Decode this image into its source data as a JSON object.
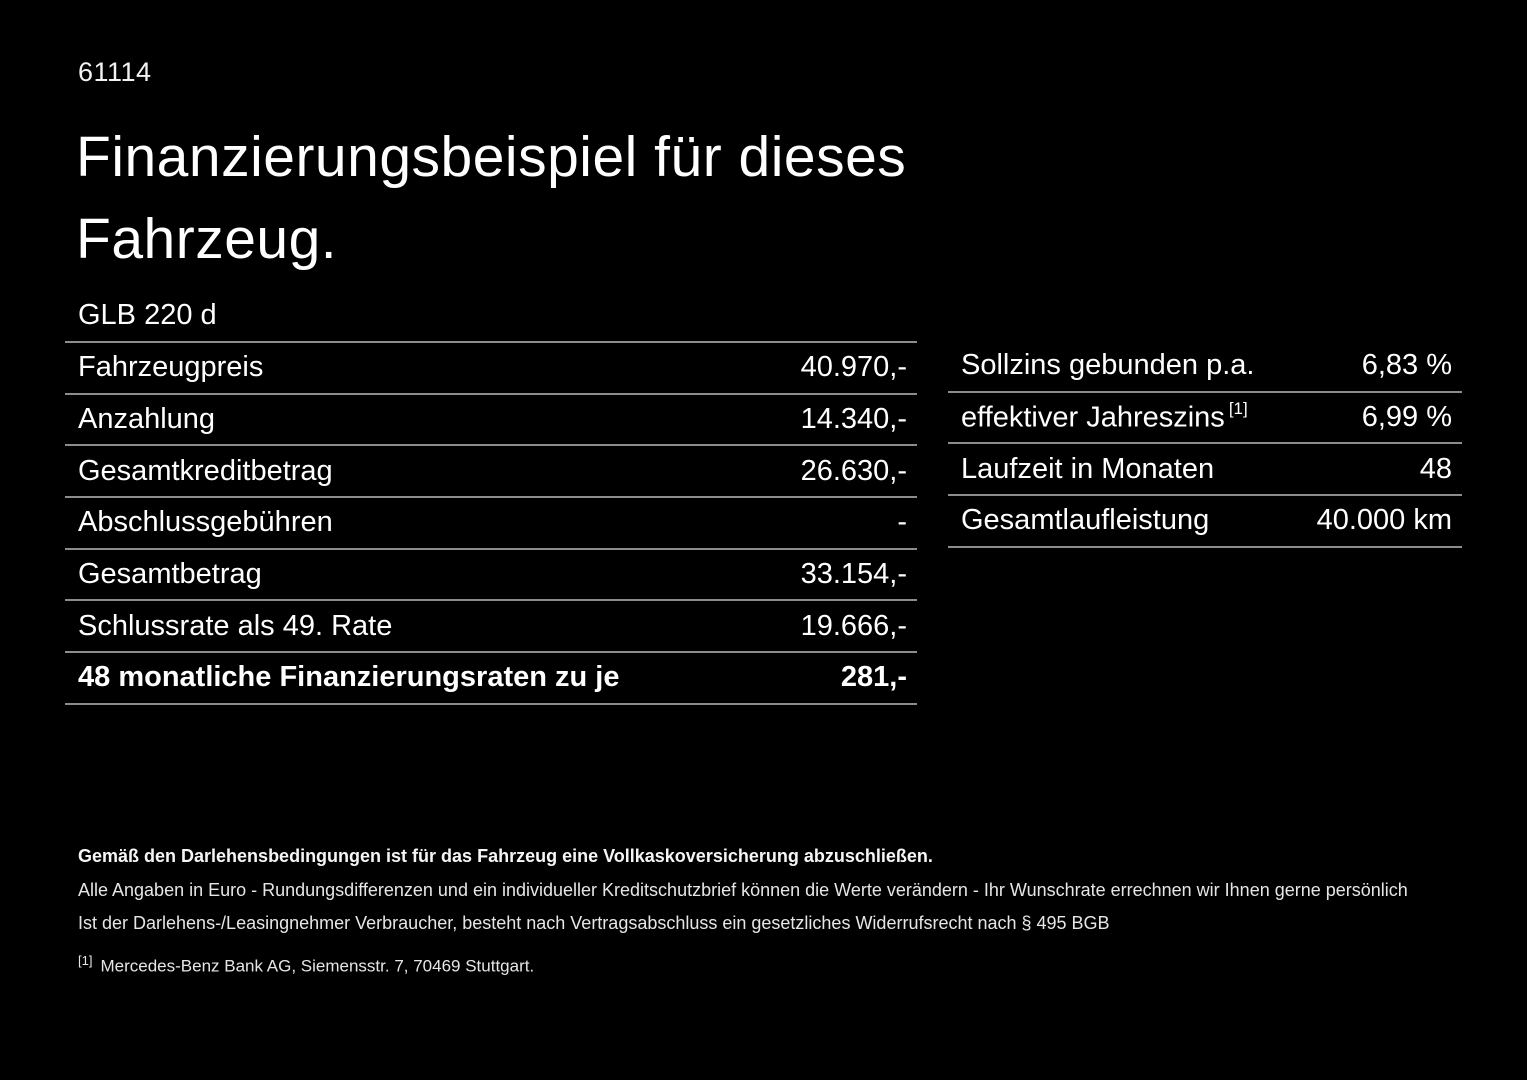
{
  "page": {
    "code": "61114",
    "title_line1": "Finanzierungsbeispiel für dieses",
    "title_line2": "Fahrzeug.",
    "model": "GLB 220 d"
  },
  "left_table": {
    "rows": [
      {
        "label": "Fahrzeugpreis",
        "value": "40.970,-"
      },
      {
        "label": "Anzahlung",
        "value": "14.340,-"
      },
      {
        "label": "Gesamtkreditbetrag",
        "value": "26.630,-"
      },
      {
        "label": "Abschlussgebühren",
        "value": "-"
      },
      {
        "label": "Gesamtbetrag",
        "value": "33.154,-"
      },
      {
        "label": "Schlussrate als 49. Rate",
        "value": "19.666,-"
      },
      {
        "label": "48 monatliche Finanzierungsraten zu je",
        "value": "281,-"
      }
    ]
  },
  "right_table": {
    "rows": [
      {
        "label": "Sollzins gebunden p.a.",
        "sup": "",
        "value": "6,83 %"
      },
      {
        "label": "effektiver Jahreszins",
        "sup": "[1]",
        "value": "6,99 %"
      },
      {
        "label": "Laufzeit in Monaten",
        "sup": "",
        "value": "48"
      },
      {
        "label": "Gesamtlaufleistung",
        "sup": "",
        "value": "40.000 km"
      }
    ]
  },
  "footer": {
    "insurance_note": "Gemäß den Darlehensbedingungen ist für das Fahrzeug eine Vollkaskoversicherung abzuschließen.",
    "euro_note": "Alle Angaben in Euro - Rundungsdifferenzen und ein individueller Kreditschutzbrief können die Werte verändern - Ihr Wunschrate errechnen wir Ihnen gerne persönlich",
    "withdrawal_note": "Ist der Darlehens-/Leasingnehmer Verbraucher, besteht nach Vertragsabschluss ein gesetzliches Widerrufsrecht nach § 495 BGB",
    "footnote_marker": "[1]",
    "footnote_text": "Mercedes-Benz Bank AG, Siemensstr. 7, 70469 Stuttgart."
  },
  "colors": {
    "background": "#000000",
    "text": "#ffffff",
    "separator": "#8c8c8c"
  }
}
